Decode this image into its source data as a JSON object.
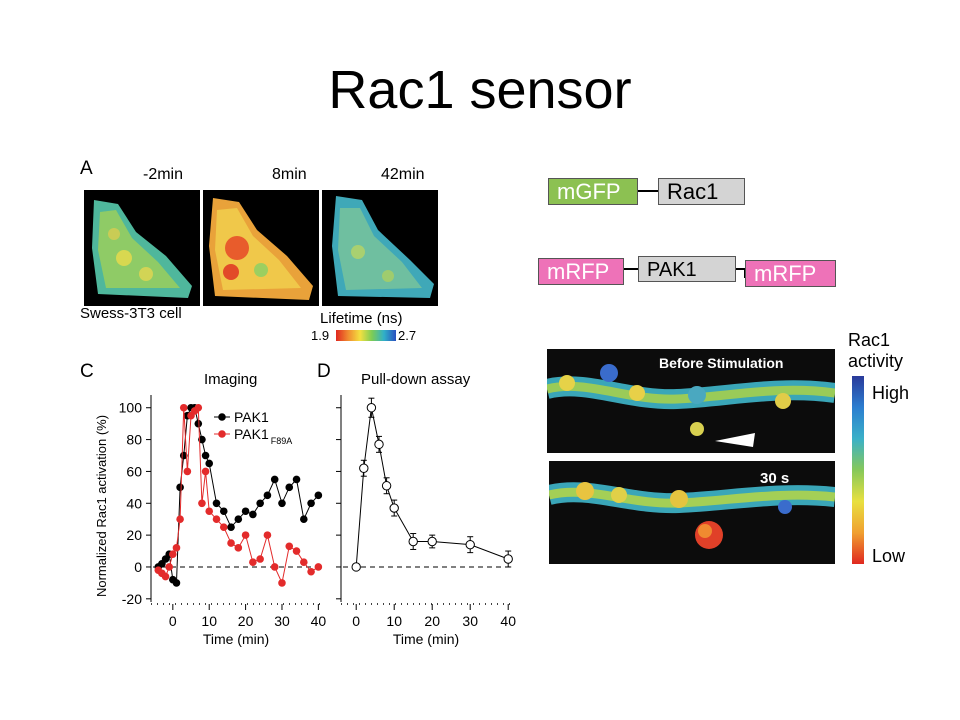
{
  "slide": {
    "title": "Rac1 sensor"
  },
  "panel_a": {
    "label": "A",
    "timepoints": [
      "-2min",
      "8min",
      "42min"
    ],
    "cell_caption": "Swess-3T3 cell",
    "lifetime_label": "Lifetime (ns)",
    "scale_min": "1.9",
    "scale_max": "2.7"
  },
  "constructs": {
    "row1": [
      "mGFP",
      "Rac1"
    ],
    "row2": [
      "mRFP",
      "PAK1",
      "mRFP"
    ]
  },
  "panel_c": {
    "label": "C",
    "title": "Imaging"
  },
  "panel_d": {
    "label": "D",
    "title": "Pull-down assay"
  },
  "dendrite": {
    "before_label": "Before Stimulation",
    "after_label": "30 s",
    "colorbar_title_1": "Rac1",
    "colorbar_title_2": "activity",
    "high_label": "High",
    "low_label": "Low"
  },
  "colors": {
    "pak1": "#000000",
    "pak1_f89a": "#e32b2b",
    "mgfp": "#8cc152",
    "mrfp": "#ee72b8",
    "construct_gray": "#d4d4d4"
  },
  "chart_data": [
    {
      "type": "scatter",
      "title": "Imaging",
      "xlabel": "Time (min)",
      "ylabel": "Normalized Rac1 activation (%)",
      "xticks": [
        0,
        10,
        20,
        30,
        40
      ],
      "yticks": [
        -20,
        0,
        20,
        40,
        60,
        80,
        100
      ],
      "xlim": [
        -6,
        41
      ],
      "ylim": [
        -22,
        108
      ],
      "series": [
        {
          "name": "PAK1",
          "sub": "",
          "color": "#000000",
          "x": [
            -4,
            -3,
            -2,
            -1,
            0,
            1,
            2,
            3,
            4,
            5,
            6,
            7,
            8,
            9,
            10,
            12,
            14,
            16,
            18,
            20,
            22,
            24,
            26,
            28,
            30,
            32,
            34,
            36,
            38,
            40
          ],
          "y": [
            0,
            2,
            5,
            8,
            -8,
            -10,
            50,
            70,
            95,
            100,
            100,
            90,
            80,
            70,
            65,
            40,
            35,
            25,
            30,
            35,
            33,
            40,
            45,
            55,
            40,
            50,
            55,
            30,
            40,
            45
          ]
        },
        {
          "name": "PAK1",
          "sub": "F89A",
          "color": "#e32b2b",
          "x": [
            -4,
            -3,
            -2,
            -1,
            0,
            1,
            2,
            3,
            4,
            5,
            6,
            7,
            8,
            9,
            10,
            12,
            14,
            16,
            18,
            20,
            22,
            24,
            26,
            28,
            30,
            32,
            34,
            36,
            38,
            40
          ],
          "y": [
            -2,
            -4,
            -6,
            0,
            8,
            12,
            30,
            100,
            60,
            95,
            98,
            100,
            40,
            60,
            35,
            30,
            25,
            15,
            12,
            20,
            3,
            5,
            20,
            0,
            -10,
            13,
            10,
            3,
            -3,
            0
          ]
        }
      ]
    },
    {
      "type": "line",
      "title": "Pull-down assay",
      "xlabel": "Time (min)",
      "xticks": [
        0,
        10,
        20,
        30,
        40
      ],
      "xlim": [
        -4,
        41
      ],
      "ylim": [
        -22,
        108
      ],
      "series": [
        {
          "name": "",
          "x": [
            0,
            2,
            4,
            6,
            8,
            10,
            15,
            20,
            30,
            40
          ],
          "y": [
            0,
            62,
            100,
            77,
            51,
            37,
            16,
            16,
            14,
            5
          ],
          "err": [
            0,
            5,
            6,
            5,
            5,
            5,
            5,
            4,
            5,
            5
          ]
        }
      ]
    }
  ]
}
